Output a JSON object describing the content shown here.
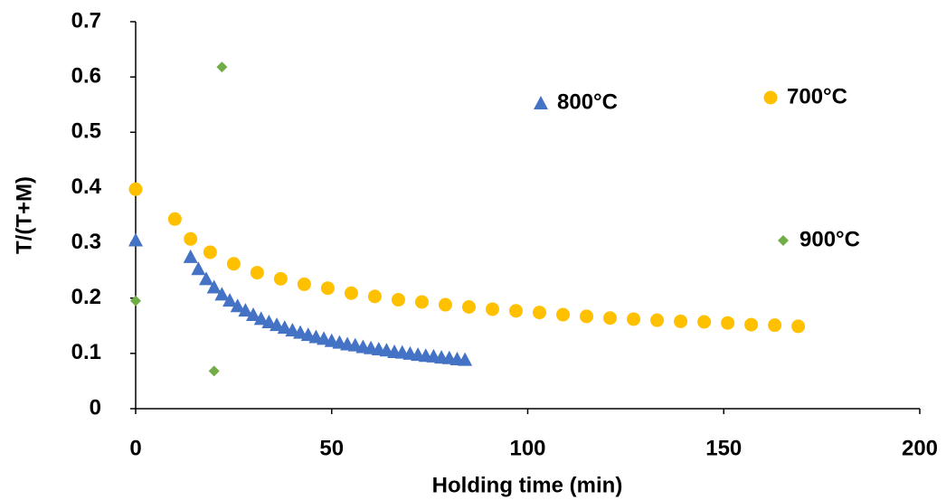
{
  "chart_data": {
    "type": "scatter",
    "x_label": "Holding time (min)",
    "y_label": "T/(T+M)",
    "xlim": [
      0,
      200
    ],
    "xticks": [
      0,
      50,
      100,
      150,
      200
    ],
    "ylim": [
      0,
      0.7
    ],
    "yticks": [
      0,
      0.1,
      0.2,
      0.3,
      0.4,
      0.5,
      0.6,
      0.7
    ],
    "grid": false,
    "series": [
      {
        "name": "700°C",
        "color": "#FFC000",
        "marker": "circle",
        "x": [
          0,
          10,
          14,
          19,
          25,
          31,
          37,
          43,
          49,
          55,
          61,
          67,
          73,
          79,
          85,
          91,
          97,
          103,
          109,
          115,
          121,
          127,
          133,
          139,
          145,
          151,
          157,
          163,
          169
        ],
        "values": [
          0.397,
          0.343,
          0.307,
          0.283,
          0.262,
          0.246,
          0.235,
          0.225,
          0.218,
          0.209,
          0.203,
          0.197,
          0.193,
          0.188,
          0.184,
          0.18,
          0.177,
          0.174,
          0.17,
          0.167,
          0.164,
          0.162,
          0.16,
          0.158,
          0.157,
          0.155,
          0.152,
          0.151,
          0.149
        ]
      },
      {
        "name": "800°C",
        "color": "#4472C4",
        "marker": "triangle",
        "x": [
          0,
          14,
          16,
          18,
          20,
          22,
          24,
          26,
          28,
          30,
          32,
          34,
          36,
          38,
          40,
          42,
          44,
          46,
          48,
          50,
          52,
          54,
          56,
          58,
          60,
          62,
          64,
          66,
          68,
          70,
          72,
          74,
          76,
          78,
          80,
          82,
          84
        ],
        "values": [
          0.305,
          0.275,
          0.253,
          0.235,
          0.22,
          0.207,
          0.196,
          0.186,
          0.178,
          0.17,
          0.163,
          0.157,
          0.152,
          0.147,
          0.142,
          0.138,
          0.134,
          0.13,
          0.127,
          0.123,
          0.12,
          0.117,
          0.115,
          0.112,
          0.11,
          0.108,
          0.106,
          0.103,
          0.102,
          0.1,
          0.098,
          0.096,
          0.095,
          0.093,
          0.092,
          0.09,
          0.089
        ]
      },
      {
        "name": "900°C",
        "color": "#70AD47",
        "marker": "diamond",
        "x": [
          0,
          20,
          22
        ],
        "values": [
          0.195,
          0.068,
          0.618
        ]
      }
    ]
  }
}
